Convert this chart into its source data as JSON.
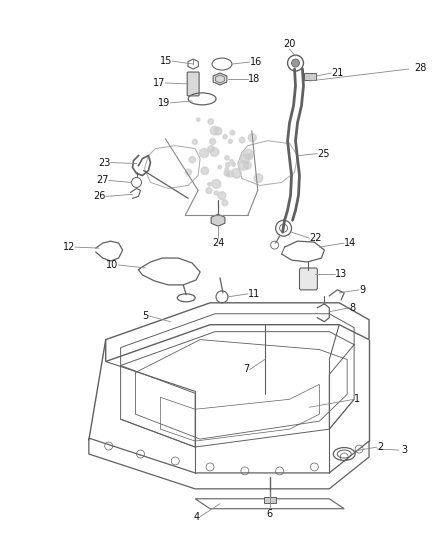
{
  "bg_color": "#ffffff",
  "line_color": "#606060",
  "text_color": "#111111",
  "figsize": [
    4.38,
    5.33
  ],
  "dpi": 100,
  "label_fs": 7.0
}
